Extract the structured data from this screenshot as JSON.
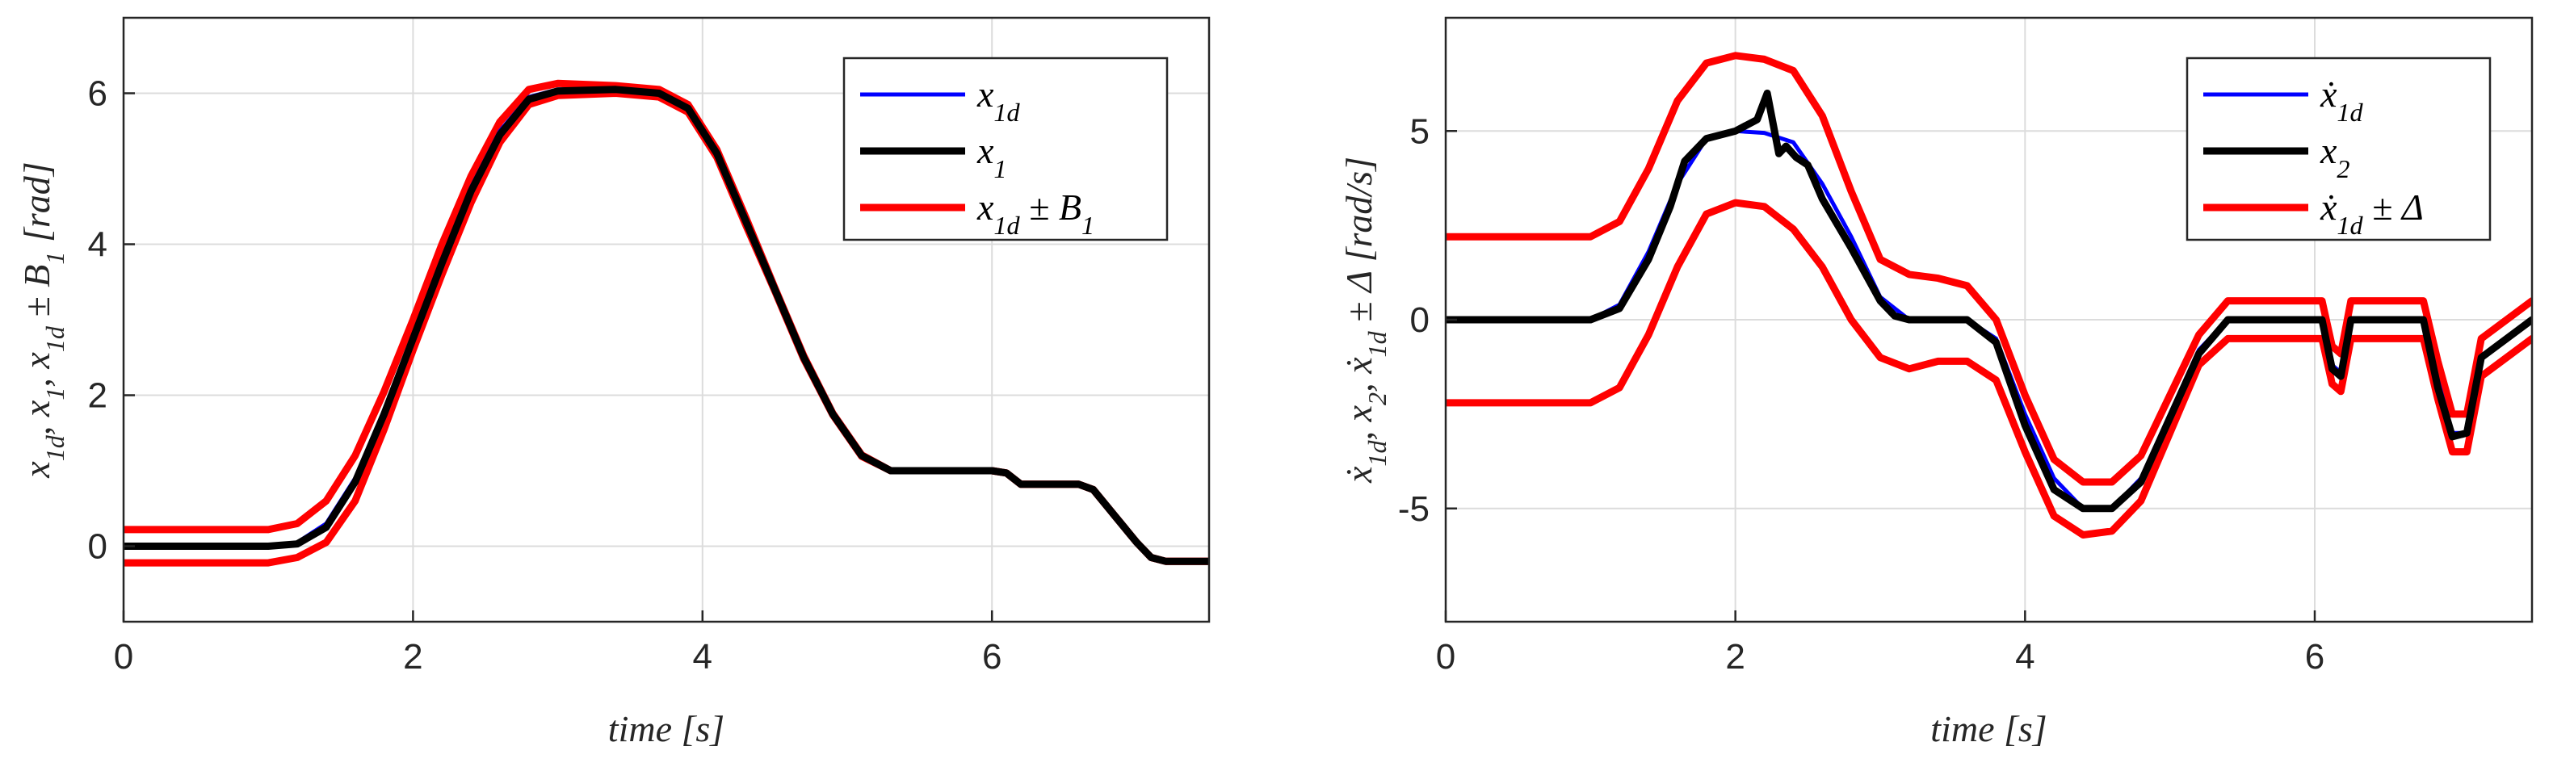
{
  "chart_data": [
    {
      "type": "line",
      "xlabel": "time [s]",
      "ylabel": "x_1d, x_1, x_1d ± B_1 [rad]",
      "xlim": [
        0,
        7.5
      ],
      "ylim": [
        -1,
        7
      ],
      "xticks": [
        "0",
        "2",
        "4",
        "6"
      ],
      "yticks": [
        "0",
        "2",
        "4",
        "6"
      ],
      "grid": true,
      "legend_position": "top-right",
      "series": [
        {
          "name": "x_1d",
          "label": "x_{1d}",
          "color": "#0000ff",
          "x": [
            0,
            1.0,
            1.2,
            1.4,
            1.6,
            1.8,
            2.0,
            2.2,
            2.4,
            2.6,
            2.8,
            3.0,
            3.4,
            3.7,
            3.9,
            4.1,
            4.3,
            4.5,
            4.7,
            4.9,
            5.1,
            5.3,
            6.0,
            6.1,
            6.2,
            6.6,
            6.7,
            6.85,
            7.0,
            7.1,
            7.2,
            7.5
          ],
          "y": [
            0,
            0,
            0.05,
            0.3,
            0.9,
            1.8,
            2.8,
            3.8,
            4.75,
            5.5,
            5.95,
            6.05,
            6.05,
            6.0,
            5.8,
            5.2,
            4.3,
            3.4,
            2.5,
            1.75,
            1.2,
            1.0,
            1.0,
            0.97,
            0.82,
            0.82,
            0.75,
            0.4,
            0.05,
            -0.15,
            -0.2,
            -0.2
          ]
        },
        {
          "name": "x_1",
          "label": "x_1",
          "color": "#000000",
          "x": [
            0,
            1.0,
            1.2,
            1.4,
            1.6,
            1.8,
            2.0,
            2.2,
            2.4,
            2.6,
            2.8,
            3.0,
            3.4,
            3.7,
            3.9,
            4.1,
            4.3,
            4.5,
            4.7,
            4.9,
            5.1,
            5.3,
            6.0,
            6.1,
            6.2,
            6.6,
            6.7,
            6.85,
            7.0,
            7.1,
            7.2,
            7.5
          ],
          "y": [
            0,
            0,
            0.03,
            0.25,
            0.85,
            1.75,
            2.75,
            3.75,
            4.7,
            5.45,
            5.92,
            6.03,
            6.05,
            6.0,
            5.8,
            5.2,
            4.3,
            3.4,
            2.5,
            1.75,
            1.2,
            1.0,
            1.0,
            0.97,
            0.82,
            0.82,
            0.75,
            0.4,
            0.05,
            -0.15,
            -0.2,
            -0.2
          ]
        },
        {
          "name": "x_1d + B_1",
          "label": "x_{1d} ± B_1",
          "color": "#ff0000",
          "x": [
            0,
            1.0,
            1.2,
            1.4,
            1.6,
            1.8,
            2.0,
            2.2,
            2.4,
            2.6,
            2.8,
            3.0,
            3.4,
            3.7,
            3.9,
            4.1,
            4.3,
            4.5,
            4.7,
            4.9,
            5.1,
            5.3,
            6.0,
            6.1,
            6.2,
            6.6,
            6.7,
            6.85,
            7.0,
            7.1,
            7.2,
            7.5
          ],
          "y": [
            0.22,
            0.22,
            0.3,
            0.6,
            1.2,
            2.05,
            3.0,
            4.0,
            4.9,
            5.62,
            6.05,
            6.13,
            6.1,
            6.05,
            5.85,
            5.25,
            4.35,
            3.42,
            2.52,
            1.76,
            1.21,
            1.0,
            1.0,
            0.97,
            0.82,
            0.82,
            0.75,
            0.4,
            0.05,
            -0.15,
            -0.2,
            -0.2
          ]
        },
        {
          "name": "x_1d - B_1",
          "label": "",
          "color": "#ff0000",
          "x": [
            0,
            1.0,
            1.2,
            1.4,
            1.6,
            1.8,
            2.0,
            2.2,
            2.4,
            2.6,
            2.8,
            3.0,
            3.4,
            3.7,
            3.9,
            4.1,
            4.3,
            4.5,
            4.7,
            4.9,
            5.1,
            5.3,
            6.0,
            6.1,
            6.2,
            6.6,
            6.7,
            6.85,
            7.0,
            7.1,
            7.2,
            7.5
          ],
          "y": [
            -0.22,
            -0.22,
            -0.15,
            0.05,
            0.6,
            1.55,
            2.6,
            3.6,
            4.55,
            5.35,
            5.85,
            5.97,
            6.0,
            5.95,
            5.75,
            5.15,
            4.25,
            3.38,
            2.48,
            1.74,
            1.19,
            1.0,
            1.0,
            0.97,
            0.82,
            0.82,
            0.75,
            0.4,
            0.05,
            -0.15,
            -0.2,
            -0.2
          ]
        }
      ]
    },
    {
      "type": "line",
      "xlabel": "time [s]",
      "ylabel": "ẋ_1d, x_2, ẋ_1d ± Δ [rad/s]",
      "xlim": [
        0,
        7.5
      ],
      "ylim": [
        -8,
        8
      ],
      "xticks": [
        "0",
        "2",
        "4",
        "6"
      ],
      "yticks": [
        "-5",
        "0",
        "5"
      ],
      "grid": true,
      "legend_position": "top-right",
      "series": [
        {
          "name": "ẋ_1d",
          "label": "ẋ_{1d}",
          "color": "#0000ff",
          "x": [
            0,
            1.0,
            1.2,
            1.4,
            1.6,
            1.8,
            2.0,
            2.2,
            2.4,
            2.6,
            2.8,
            3.0,
            3.2,
            3.4,
            3.6,
            3.8,
            4.0,
            4.2,
            4.4,
            4.6,
            4.8,
            5.0,
            5.2,
            5.4,
            6.05,
            6.12,
            6.18,
            6.25,
            6.75,
            6.85,
            6.95,
            7.05,
            7.15,
            7.5
          ],
          "y": [
            0,
            0,
            0.4,
            1.8,
            3.6,
            4.8,
            5.0,
            4.95,
            4.7,
            3.6,
            2.2,
            0.6,
            0,
            0,
            0,
            -0.5,
            -2.5,
            -4.2,
            -5.0,
            -5.0,
            -4.2,
            -2.5,
            -0.8,
            0,
            0,
            -1.2,
            -1.4,
            0,
            0,
            -1.6,
            -3.0,
            -3.0,
            -1.0,
            0
          ]
        },
        {
          "name": "x_2",
          "label": "x_2",
          "color": "#000000",
          "x": [
            0,
            0.9,
            1.0,
            1.2,
            1.4,
            1.55,
            1.65,
            1.8,
            2.0,
            2.15,
            2.22,
            2.3,
            2.35,
            2.42,
            2.5,
            2.6,
            2.8,
            3.0,
            3.1,
            3.2,
            3.4,
            3.6,
            3.8,
            4.0,
            4.2,
            4.4,
            4.6,
            4.8,
            5.0,
            5.2,
            5.4,
            6.05,
            6.12,
            6.18,
            6.25,
            6.75,
            6.85,
            6.95,
            7.05,
            7.15,
            7.5
          ],
          "y": [
            0,
            0,
            0,
            0.3,
            1.6,
            3.0,
            4.2,
            4.8,
            5.0,
            5.3,
            6.0,
            4.4,
            4.6,
            4.3,
            4.1,
            3.2,
            1.9,
            0.5,
            0.1,
            0,
            0,
            0,
            -0.6,
            -2.8,
            -4.5,
            -5.0,
            -5.0,
            -4.3,
            -2.6,
            -0.9,
            0,
            0,
            -1.3,
            -1.5,
            0,
            0,
            -1.8,
            -3.1,
            -3.0,
            -1.0,
            0
          ]
        },
        {
          "name": "ẋ_1d + Δ",
          "label": "ẋ_{1d} ± Δ",
          "color": "#ff0000",
          "x": [
            0,
            1.0,
            1.2,
            1.4,
            1.6,
            1.8,
            2.0,
            2.2,
            2.4,
            2.6,
            2.8,
            3.0,
            3.2,
            3.4,
            3.6,
            3.8,
            4.0,
            4.2,
            4.4,
            4.6,
            4.8,
            5.0,
            5.2,
            5.4,
            6.05,
            6.12,
            6.18,
            6.25,
            6.75,
            6.85,
            6.95,
            7.05,
            7.15,
            7.5
          ],
          "y": [
            2.2,
            2.2,
            2.6,
            4.0,
            5.8,
            6.8,
            7.0,
            6.9,
            6.6,
            5.4,
            3.4,
            1.6,
            1.2,
            1.1,
            0.9,
            0.0,
            -2.0,
            -3.7,
            -4.3,
            -4.3,
            -3.6,
            -2.0,
            -0.4,
            0.5,
            0.5,
            -0.7,
            -0.9,
            0.5,
            0.5,
            -1.1,
            -2.5,
            -2.5,
            -0.5,
            0.5
          ]
        },
        {
          "name": "ẋ_1d - Δ",
          "label": "",
          "color": "#ff0000",
          "x": [
            0,
            1.0,
            1.2,
            1.4,
            1.6,
            1.8,
            2.0,
            2.2,
            2.4,
            2.6,
            2.8,
            3.0,
            3.2,
            3.4,
            3.6,
            3.8,
            4.0,
            4.2,
            4.4,
            4.6,
            4.8,
            5.0,
            5.2,
            5.4,
            6.05,
            6.12,
            6.18,
            6.25,
            6.75,
            6.85,
            6.95,
            7.05,
            7.15,
            7.5
          ],
          "y": [
            -2.2,
            -2.2,
            -1.8,
            -0.4,
            1.4,
            2.8,
            3.1,
            3.0,
            2.4,
            1.4,
            0.0,
            -1.0,
            -1.3,
            -1.1,
            -1.1,
            -1.6,
            -3.5,
            -5.2,
            -5.7,
            -5.6,
            -4.8,
            -3.0,
            -1.2,
            -0.5,
            -0.5,
            -1.7,
            -1.9,
            -0.5,
            -0.5,
            -2.1,
            -3.5,
            -3.5,
            -1.5,
            -0.5
          ]
        }
      ]
    }
  ]
}
